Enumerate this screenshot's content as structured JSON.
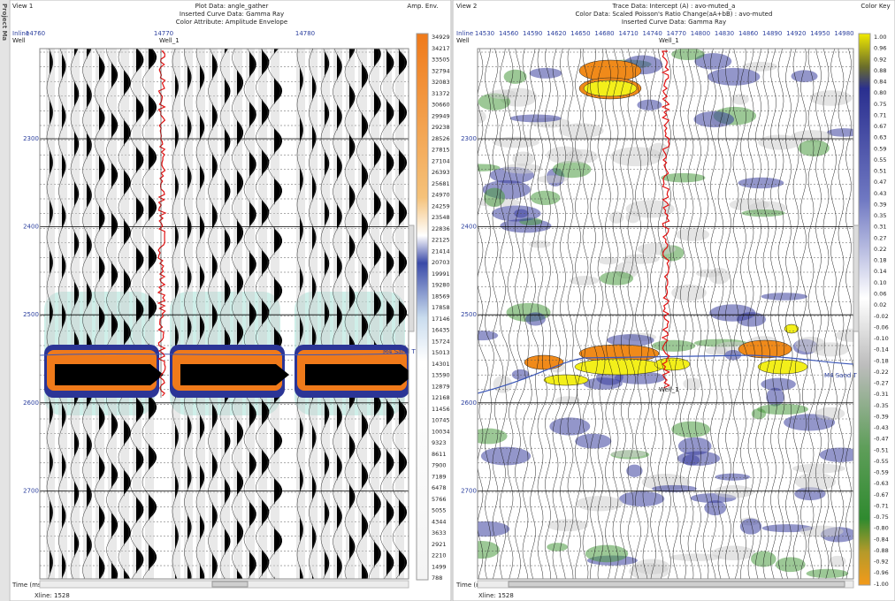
{
  "sidebar": {
    "label": "Project Ma"
  },
  "view1": {
    "name": "View 1",
    "header": [
      "Plot Data: angle_gather",
      "Inserted Curve Data: Gamma Ray",
      "Color Attribute: Amplitude Envelope"
    ],
    "key_title": "Amp. Env.",
    "inline_label": "Inline",
    "well_label": "Well",
    "inlines": [
      "14760",
      "14770",
      "14780"
    ],
    "well": "Well_1",
    "times": [
      "2300",
      "2400",
      "2500",
      "2600",
      "2700"
    ],
    "horizon": "M4 Sand T",
    "key_values": [
      "34929",
      "34217",
      "33505",
      "32794",
      "32083",
      "31372",
      "30660",
      "29949",
      "29238",
      "28526",
      "27815",
      "27104",
      "26393",
      "25681",
      "24970",
      "24259",
      "23548",
      "22836",
      "22125",
      "21414",
      "20703",
      "19991",
      "19280",
      "18569",
      "17858",
      "17146",
      "16435",
      "15724",
      "15013",
      "14301",
      "13590",
      "12879",
      "12168",
      "11456",
      "10745",
      "10034",
      "9323",
      "8611",
      "7900",
      "7189",
      "6478",
      "5766",
      "5055",
      "4344",
      "3633",
      "2921",
      "2210",
      "1499",
      "788"
    ],
    "time_axis": "Time (ms)",
    "xline": "Xline: 1528"
  },
  "view2": {
    "name": "View 2",
    "header": [
      "Trace Data: Intercept (A) : avo-muted_a",
      "Color Data: Scaled Poisson's Ratio Change(aA+bB) : avo-muted",
      "Inserted Curve Data: Gamma Ray"
    ],
    "key_title": "Color Key",
    "inline_label": "Inline",
    "well_label": "Well",
    "inlines": [
      "14530",
      "14560",
      "14590",
      "14620",
      "14650",
      "14680",
      "14710",
      "14740",
      "14770",
      "14800",
      "14830",
      "14860",
      "14890",
      "14920",
      "14950",
      "14980"
    ],
    "wells": [
      "Well_1",
      "Well_1"
    ],
    "times": [
      "2300",
      "2400",
      "2500",
      "2600",
      "2700"
    ],
    "horizon": "M4 Sand T",
    "key_values": [
      "1.00",
      "0.96",
      "0.92",
      "0.88",
      "0.84",
      "0.80",
      "0.75",
      "0.71",
      "0.67",
      "0.63",
      "0.59",
      "0.55",
      "0.51",
      "0.47",
      "0.43",
      "0.39",
      "0.35",
      "0.31",
      "0.27",
      "0.22",
      "0.18",
      "0.14",
      "0.10",
      "0.06",
      "0.02",
      "-0.02",
      "-0.06",
      "-0.10",
      "-0.14",
      "-0.18",
      "-0.22",
      "-0.27",
      "-0.31",
      "-0.35",
      "-0.39",
      "-0.43",
      "-0.47",
      "-0.51",
      "-0.55",
      "-0.59",
      "-0.63",
      "-0.67",
      "-0.71",
      "-0.75",
      "-0.80",
      "-0.84",
      "-0.88",
      "-0.92",
      "-0.96",
      "-1.00"
    ],
    "time_axis": "Time (ms)",
    "xline": "Xline: 1528"
  }
}
